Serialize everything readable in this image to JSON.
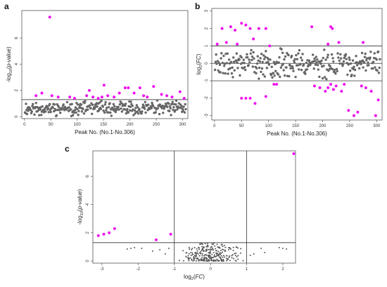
{
  "panels": [
    {
      "label": "a"
    },
    {
      "label": "b"
    },
    {
      "label": "c"
    }
  ],
  "colors": {
    "significant": "#ee11ee",
    "normal": "#666666",
    "volcano_normal": "#555555",
    "axis": "#555555"
  },
  "chart_data": [
    {
      "id": "a",
      "type": "scatter",
      "xlabel": "Peak No. (No.1-No.306)",
      "ylabel": "-log10(p-value)",
      "xlim": [
        -5,
        310
      ],
      "ylim": [
        -0.15,
        8.1
      ],
      "xticks": [
        0,
        50,
        100,
        150,
        200,
        250,
        300
      ],
      "yticks": [
        0,
        2,
        4,
        6
      ],
      "hlines": [
        1.3
      ],
      "grid": false,
      "seed": 11,
      "n_total": 306,
      "normal_range": [
        0,
        1.25
      ],
      "highlight_points": [
        [
          22,
          1.6
        ],
        [
          33,
          1.8
        ],
        [
          48,
          7.6
        ],
        [
          52,
          1.6
        ],
        [
          64,
          1.5
        ],
        [
          86,
          1.5
        ],
        [
          95,
          1.4
        ],
        [
          118,
          1.6
        ],
        [
          123,
          2.0
        ],
        [
          130,
          1.5
        ],
        [
          140,
          1.4
        ],
        [
          147,
          1.5
        ],
        [
          151,
          2.4
        ],
        [
          158,
          1.6
        ],
        [
          170,
          1.5
        ],
        [
          180,
          1.8
        ],
        [
          191,
          2.2
        ],
        [
          197,
          2.2
        ],
        [
          208,
          1.8
        ],
        [
          219,
          2.2
        ],
        [
          226,
          1.6
        ],
        [
          233,
          1.5
        ],
        [
          245,
          2.3
        ],
        [
          260,
          1.7
        ],
        [
          270,
          1.6
        ],
        [
          280,
          1.5
        ],
        [
          295,
          1.9
        ],
        [
          303,
          1.4
        ]
      ]
    },
    {
      "id": "b",
      "type": "scatter",
      "xlabel": "Peak No. (No.1-No.306)",
      "ylabel": "log2(FC)",
      "xlim": [
        -5,
        310
      ],
      "ylim": [
        -3.25,
        3.15
      ],
      "xticks": [
        0,
        50,
        100,
        150,
        200,
        250,
        300
      ],
      "yticks": [
        -3,
        -2,
        -1,
        0,
        1,
        2,
        3
      ],
      "hlines": [
        -1,
        0,
        1
      ],
      "grid": false,
      "seed": 23,
      "n_total": 306,
      "normal_range": [
        -0.95,
        0.95
      ],
      "highlight_points": [
        [
          5,
          1.1
        ],
        [
          14,
          2.0
        ],
        [
          22,
          1.2
        ],
        [
          30,
          2.1
        ],
        [
          38,
          1.9
        ],
        [
          42,
          1.1
        ],
        [
          50,
          2.3
        ],
        [
          58,
          2.2
        ],
        [
          66,
          2.0
        ],
        [
          72,
          1.4
        ],
        [
          82,
          2.0
        ],
        [
          95,
          2.0
        ],
        [
          102,
          1.0
        ],
        [
          180,
          2.1
        ],
        [
          210,
          1.1
        ],
        [
          215,
          2.1
        ],
        [
          218,
          2.0
        ],
        [
          230,
          1.2
        ],
        [
          275,
          1.2
        ],
        [
          50,
          -2.0
        ],
        [
          58,
          -2.0
        ],
        [
          66,
          -2.0
        ],
        [
          75,
          -2.3
        ],
        [
          95,
          -1.9
        ],
        [
          110,
          -1.2
        ],
        [
          115,
          -1.2
        ],
        [
          185,
          -1.3
        ],
        [
          195,
          -1.4
        ],
        [
          205,
          -1.6
        ],
        [
          210,
          -1.4
        ],
        [
          215,
          -1.2
        ],
        [
          220,
          -1.5
        ],
        [
          225,
          -1.3
        ],
        [
          235,
          -1.6
        ],
        [
          240,
          -1.2
        ],
        [
          248,
          -2.7
        ],
        [
          258,
          -3.0
        ],
        [
          265,
          -2.8
        ],
        [
          272,
          -1.3
        ],
        [
          280,
          -1.4
        ],
        [
          290,
          -1.6
        ],
        [
          298,
          -3.0
        ],
        [
          303,
          -2.1
        ]
      ]
    },
    {
      "id": "c",
      "type": "scatter",
      "xlabel": "log2(FC)",
      "ylabel": "-log10(p-value)",
      "xlim": [
        -3.25,
        2.35
      ],
      "ylim": [
        -0.15,
        7.8
      ],
      "xticks": [
        -3,
        -2,
        -1,
        0,
        1,
        2
      ],
      "yticks": [
        0,
        2,
        4,
        6
      ],
      "hlines": [
        1.3
      ],
      "vlines": [
        -1,
        1
      ],
      "grid": false,
      "seed": 37,
      "n_total": 306,
      "highlight_points": [
        [
          -3.1,
          1.8
        ],
        [
          -2.95,
          1.9
        ],
        [
          -2.8,
          2.0
        ],
        [
          -2.65,
          2.3
        ],
        [
          -1.1,
          1.9
        ],
        [
          -1.5,
          1.5
        ],
        [
          2.3,
          7.6
        ]
      ],
      "extra_normal_points": [
        [
          -2.3,
          0.85
        ],
        [
          -2.2,
          0.9
        ],
        [
          -2.1,
          0.95
        ],
        [
          -1.9,
          0.9
        ],
        [
          -1.6,
          0.7
        ],
        [
          -1.4,
          0.8
        ],
        [
          -1.25,
          0.5
        ],
        [
          -1.15,
          0.9
        ],
        [
          1.1,
          0.4
        ],
        [
          1.2,
          0.5
        ],
        [
          1.4,
          0.9
        ],
        [
          1.5,
          0.6
        ],
        [
          1.9,
          0.95
        ],
        [
          2.0,
          0.9
        ],
        [
          2.1,
          0.85
        ]
      ]
    }
  ]
}
